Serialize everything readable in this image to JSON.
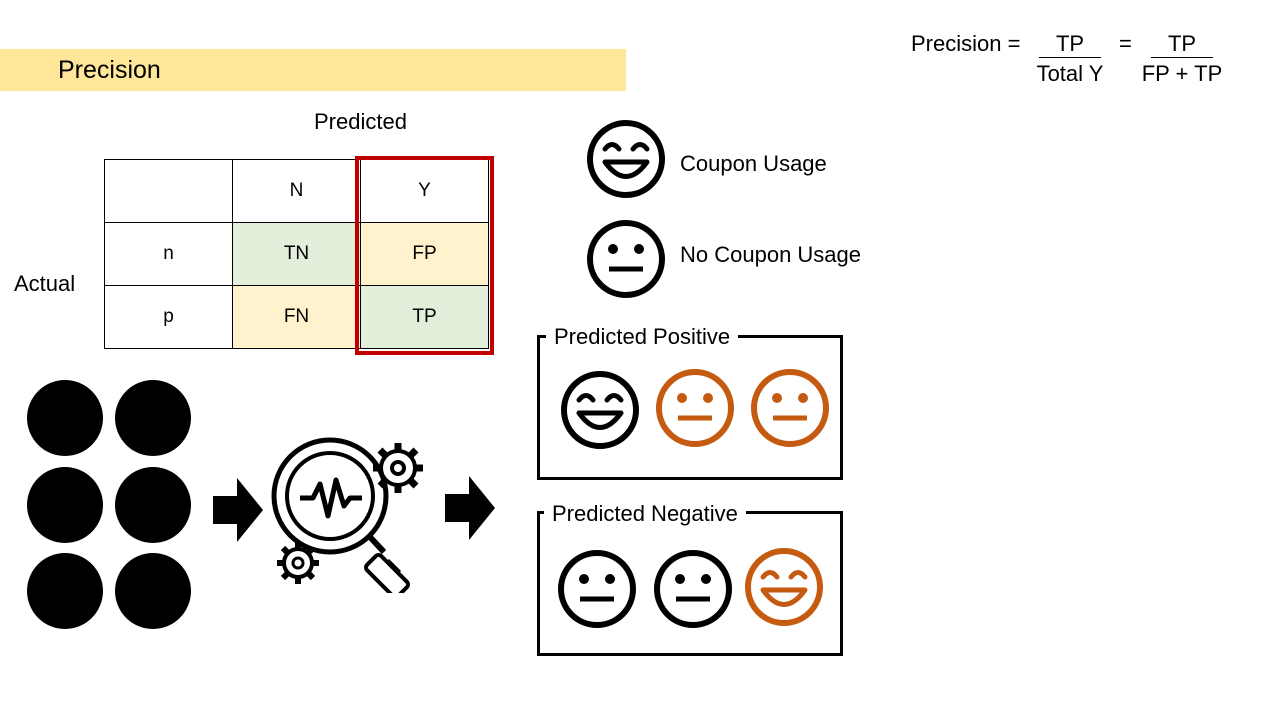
{
  "title": "Precision",
  "formula": {
    "label": "Precision =",
    "fraction1": {
      "numerator": "TP",
      "denominator": "Total Y"
    },
    "equals": "=",
    "fraction2": {
      "numerator": "TP",
      "denominator": "FP + TP"
    }
  },
  "confusion_matrix": {
    "predicted_label": "Predicted",
    "actual_label": "Actual",
    "column_headers": [
      "N",
      "Y"
    ],
    "rows": [
      {
        "label": "n",
        "cells": [
          "TN",
          "FP"
        ]
      },
      {
        "label": "p",
        "cells": [
          "FN",
          "TP"
        ]
      }
    ],
    "colors": {
      "correct": "#e2efda",
      "error": "#fff2cc",
      "highlight_border": "#c00000"
    }
  },
  "legend": {
    "items": [
      {
        "icon": "smiley-face-icon",
        "label": "Coupon Usage"
      },
      {
        "icon": "neutral-face-icon",
        "label": "No Coupon Usage"
      }
    ]
  },
  "groups": {
    "positive": {
      "label": "Predicted Positive",
      "faces": [
        "smiley-black",
        "neutral-orange",
        "neutral-orange"
      ]
    },
    "negative": {
      "label": "Predicted Negative",
      "faces": [
        "neutral-black",
        "neutral-black",
        "smiley-orange"
      ]
    }
  },
  "colors": {
    "banner": "#ffe699",
    "face_black": "#000000",
    "face_orange": "#c55a11"
  }
}
